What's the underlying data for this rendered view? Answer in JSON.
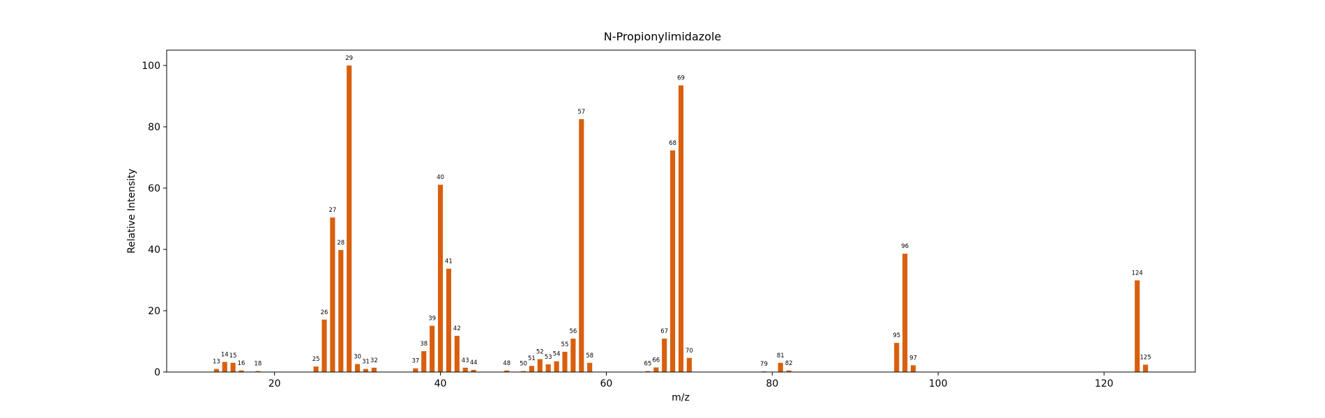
{
  "chart_data": {
    "type": "bar",
    "title": "N-Propionylimidazole",
    "xlabel": "m/z",
    "ylabel": "Relative Intensity",
    "xlim": [
      7,
      131
    ],
    "ylim": [
      0,
      105
    ],
    "xticks": [
      20,
      40,
      60,
      80,
      100,
      120
    ],
    "yticks": [
      0,
      20,
      40,
      60,
      80,
      100
    ],
    "bar_color": "#d95f0e",
    "grid": false,
    "x": [
      13,
      14,
      15,
      16,
      18,
      25,
      26,
      27,
      28,
      29,
      30,
      31,
      32,
      37,
      38,
      39,
      40,
      41,
      42,
      43,
      44,
      48,
      50,
      51,
      52,
      53,
      54,
      55,
      56,
      57,
      58,
      65,
      66,
      67,
      68,
      69,
      70,
      79,
      81,
      82,
      95,
      96,
      97,
      124,
      125
    ],
    "values": [
      1.0,
      3.3,
      3.0,
      0.5,
      0.3,
      1.8,
      17.1,
      50.4,
      39.8,
      100.0,
      2.6,
      1.0,
      1.4,
      1.2,
      6.8,
      15.1,
      61.1,
      33.7,
      11.8,
      1.4,
      0.7,
      0.5,
      0.3,
      2.0,
      4.2,
      2.5,
      3.5,
      6.6,
      10.9,
      82.5,
      3.0,
      0.3,
      1.5,
      10.9,
      72.3,
      93.5,
      4.6,
      0.2,
      3.0,
      0.5,
      9.5,
      38.6,
      2.2,
      29.9,
      2.4
    ]
  }
}
